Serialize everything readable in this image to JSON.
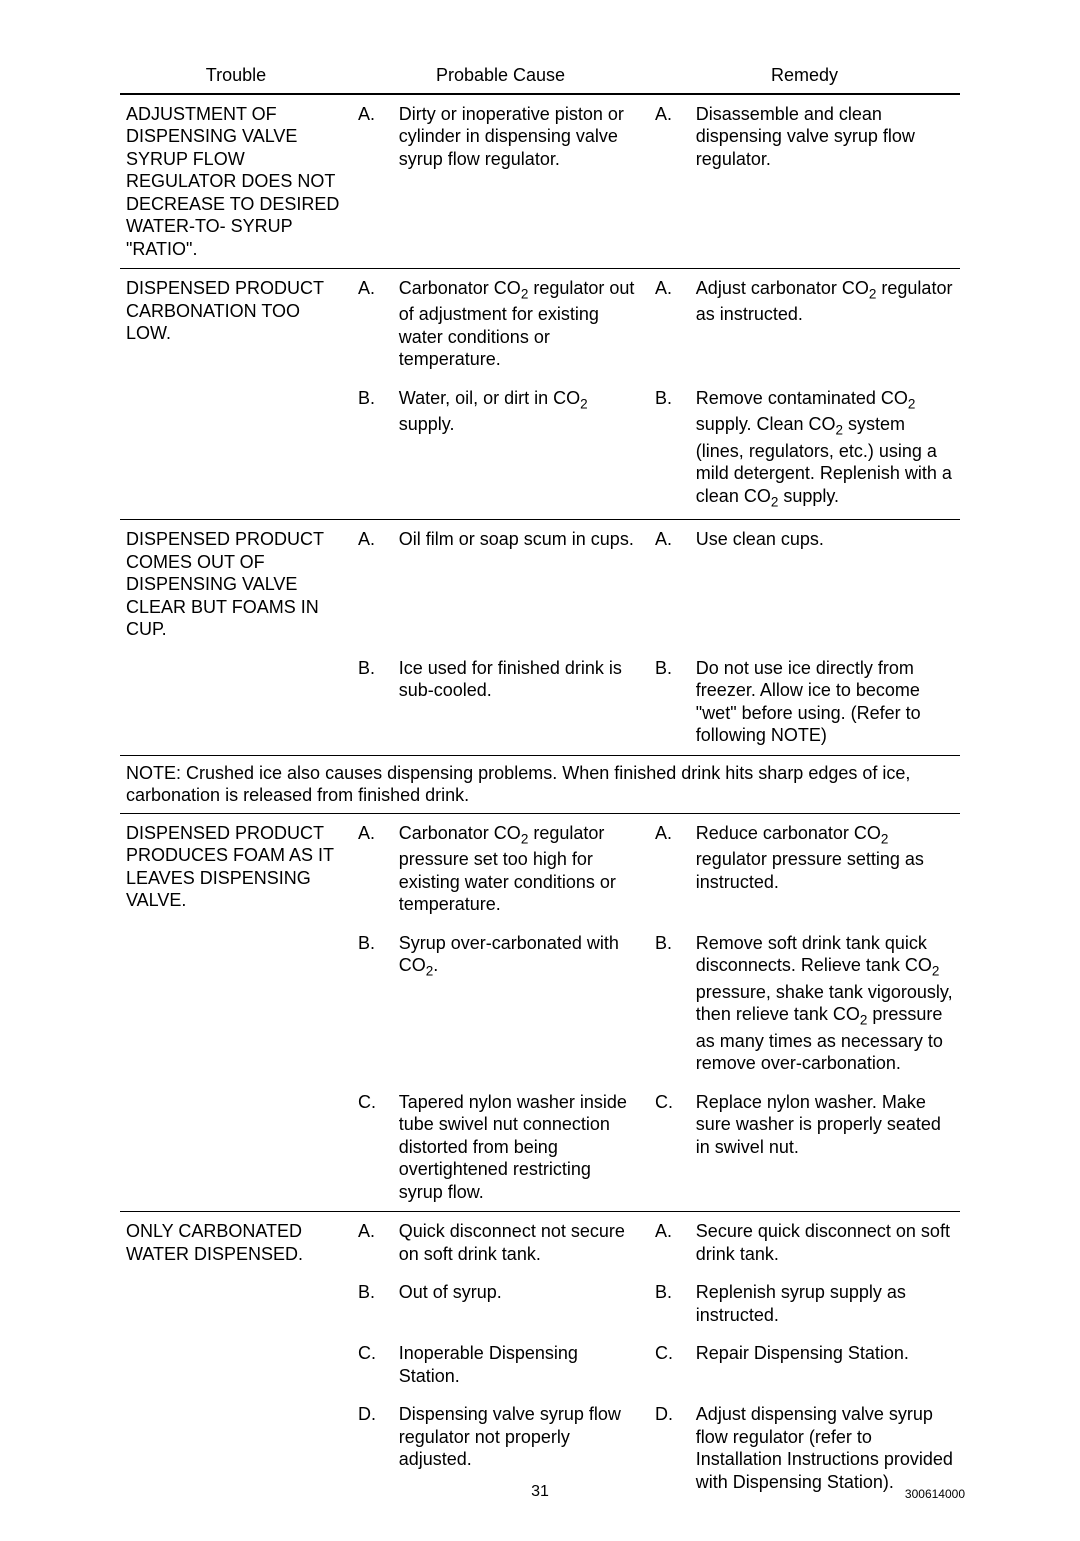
{
  "headers": {
    "trouble": "Trouble",
    "cause": "Probable Cause",
    "remedy": "Remedy"
  },
  "sections": [
    {
      "trouble": "ADJUSTMENT OF DISPENSING VALVE SYRUP FLOW REGULATOR DOES NOT DECREASE TO DESIRED WATER-TO- SYRUP \"RATIO\".",
      "rows": [
        {
          "letter": "A.",
          "cause": "Dirty or inoperative piston or cylinder in dispensing valve syrup flow  regulator.",
          "remedy": "Disassemble and clean dispensing valve syrup flow regulator."
        }
      ]
    },
    {
      "trouble": "DISPENSED PRODUCT CARBONATION TOO LOW.",
      "rows": [
        {
          "letter": "A.",
          "causeHtml": "Carbonator CO<sub>2</sub> regulator out of adjustment for existing water conditions or temperature.",
          "remedyHtml": "Adjust carbonator CO<sub>2</sub> regulator as instructed."
        },
        {
          "letter": "B.",
          "causeHtml": "Water, oil, or dirt in CO<sub>2</sub> supply.",
          "remedyHtml": "Remove contaminated CO<sub>2</sub> supply. Clean CO<sub>2</sub> system (lines, regulators, etc.) using a mild detergent. Replenish with a clean CO<sub>2</sub> supply."
        }
      ]
    },
    {
      "trouble": "DISPENSED PRODUCT COMES OUT OF DISPENSING VALVE CLEAR BUT FOAMS IN CUP.",
      "rows": [
        {
          "letter": "A.",
          "cause": "Oil film or soap scum in cups.",
          "remedy": "Use clean cups."
        },
        {
          "letter": "B.",
          "cause": "Ice used for finished drink is sub-cooled.",
          "remedy": "Do not use ice directly from freezer. Allow ice to become \"wet\" before  using. (Refer to following NOTE)"
        }
      ],
      "note": "NOTE: Crushed ice also causes dispensing problems. When finished drink hits sharp edges of ice, carbonation is released from finished drink."
    },
    {
      "trouble": "DISPENSED PRODUCT PRODUCES FOAM AS IT LEAVES DISPENSING VALVE.",
      "rows": [
        {
          "letter": "A.",
          "causeHtml": "Carbonator CO<sub>2</sub> regulator pressure set too high for existing water conditions or temperature.",
          "remedyHtml": "Reduce carbonator CO<sub>2</sub> regulator pressure setting as instructed."
        },
        {
          "letter": "B.",
          "causeHtml": "Syrup over-carbonated with CO<sub>2</sub>.",
          "remedyHtml": "Remove soft drink tank quick disconnects. Relieve tank CO<sub>2</sub> pressure, shake tank vigorously, then relieve tank CO<sub>2</sub> pressure as many times as necessary to remove over-carbonation."
        },
        {
          "letter": "C.",
          "cause": "Tapered nylon washer inside tube swivel nut connection distorted from being overtightened restricting syrup flow.",
          "remedy": "Replace nylon washer. Make sure washer is properly seated in swivel nut."
        }
      ]
    },
    {
      "trouble": "ONLY CARBONATED WATER DISPENSED.",
      "rows": [
        {
          "letter": "A.",
          "cause": "Quick disconnect not secure on soft drink tank.",
          "remedy": "Secure quick disconnect on soft drink tank."
        },
        {
          "letter": "B.",
          "cause": "Out of syrup.",
          "remedy": "Replenish syrup supply as instructed."
        },
        {
          "letter": "C.",
          "cause": "Inoperable Dispensing Station.",
          "remedy": "Repair Dispensing Station."
        },
        {
          "letter": "D.",
          "cause": "Dispensing valve syrup flow regulator not properly adjusted.",
          "remedy": " Adjust dispensing valve syrup flow regulator (refer to Installation Instructions provided with Dispensing Station)."
        }
      ]
    }
  ],
  "footer": {
    "pageNumber": "31",
    "docNumber": "300614000"
  }
}
